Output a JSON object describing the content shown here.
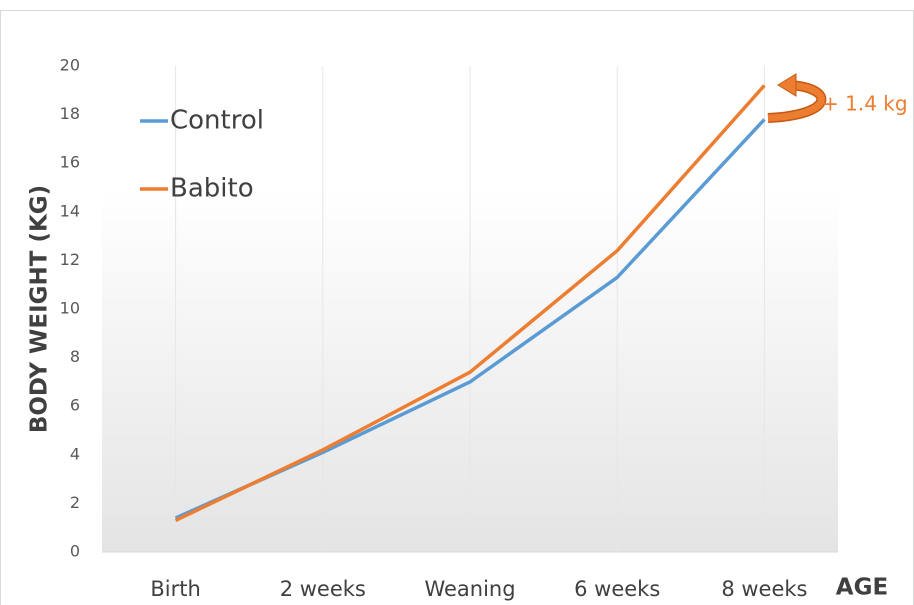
{
  "chart_data": {
    "type": "line",
    "y_label": "BODY WEIGHT (KG)",
    "x_label": "AGE",
    "annotation": "+ 1.4 kg",
    "categories": [
      "Birth",
      "2 weeks",
      "Weaning",
      "6 weeks",
      "8 weeks"
    ],
    "series": [
      {
        "name": "Control",
        "color": "#5b9bd5",
        "values": [
          1.4,
          4.1,
          7.0,
          11.3,
          17.8
        ]
      },
      {
        "name": "Babito",
        "color": "#ed7d31",
        "values": [
          1.3,
          4.2,
          7.4,
          12.4,
          19.2
        ]
      }
    ],
    "ylim": [
      0,
      20
    ],
    "yticks": [
      0,
      2,
      4,
      6,
      8,
      10,
      12,
      14,
      16,
      18,
      20
    ],
    "grid": "x",
    "legend": "upper left"
  }
}
